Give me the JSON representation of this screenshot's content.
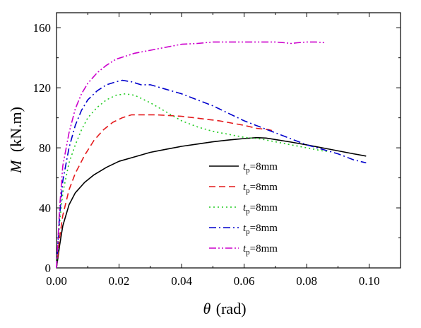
{
  "chart_data": {
    "type": "line",
    "title": "",
    "xlabel": {
      "symbol": "θ",
      "unit": "(rad)"
    },
    "ylabel": {
      "symbol": "M",
      "unit": "(kN.m)"
    },
    "xlim": [
      0.0,
      0.11
    ],
    "ylim": [
      0,
      170
    ],
    "xticks": [
      0.0,
      0.02,
      0.04,
      0.06,
      0.08,
      0.1
    ],
    "xtick_labels": [
      "0.00",
      "0.02",
      "0.04",
      "0.06",
      "0.08",
      "0.10"
    ],
    "yticks": [
      0,
      40,
      80,
      120,
      160
    ],
    "ytick_labels": [
      "0",
      "40",
      "80",
      "120",
      "160"
    ],
    "grid": false,
    "legend": {
      "placement": "lower-center",
      "entries": [
        {
          "symbol": "t",
          "subscript": "p",
          "text": "=8mm"
        },
        {
          "symbol": "t",
          "subscript": "p",
          "text": "=8mm"
        },
        {
          "symbol": "t",
          "subscript": "p",
          "text": "=8mm"
        },
        {
          "symbol": "t",
          "subscript": "p",
          "text": "=8mm"
        },
        {
          "symbol": "t",
          "subscript": "p",
          "text": "=8mm"
        }
      ]
    },
    "series": [
      {
        "color": "#000000",
        "dash": "solid",
        "points": [
          [
            0,
            0
          ],
          [
            0.001,
            15
          ],
          [
            0.002,
            28
          ],
          [
            0.004,
            42
          ],
          [
            0.006,
            50
          ],
          [
            0.009,
            57
          ],
          [
            0.012,
            62
          ],
          [
            0.016,
            67
          ],
          [
            0.02,
            71
          ],
          [
            0.025,
            74
          ],
          [
            0.03,
            77
          ],
          [
            0.035,
            79
          ],
          [
            0.04,
            81
          ],
          [
            0.045,
            82.5
          ],
          [
            0.05,
            84
          ],
          [
            0.055,
            85.2
          ],
          [
            0.06,
            86.2
          ],
          [
            0.064,
            86.8
          ],
          [
            0.067,
            86.5
          ],
          [
            0.07,
            85.5
          ],
          [
            0.075,
            83.8
          ],
          [
            0.08,
            82
          ],
          [
            0.085,
            80
          ],
          [
            0.09,
            78
          ],
          [
            0.095,
            76
          ],
          [
            0.099,
            74.5
          ]
        ]
      },
      {
        "color": "#e41a1c",
        "dash": "dashed",
        "points": [
          [
            0,
            0
          ],
          [
            0.001,
            20
          ],
          [
            0.002,
            35
          ],
          [
            0.004,
            52
          ],
          [
            0.006,
            63
          ],
          [
            0.009,
            75
          ],
          [
            0.012,
            85
          ],
          [
            0.015,
            92
          ],
          [
            0.018,
            97
          ],
          [
            0.021,
            100
          ],
          [
            0.024,
            102
          ],
          [
            0.028,
            102
          ],
          [
            0.032,
            102
          ],
          [
            0.036,
            101.5
          ],
          [
            0.04,
            101
          ],
          [
            0.044,
            100
          ],
          [
            0.048,
            99
          ],
          [
            0.052,
            98
          ],
          [
            0.056,
            96.5
          ],
          [
            0.06,
            95
          ],
          [
            0.064,
            93
          ],
          [
            0.068,
            92
          ],
          [
            0.07,
            91
          ]
        ]
      },
      {
        "color": "#22cc22",
        "dash": "dotted",
        "points": [
          [
            0,
            0
          ],
          [
            0.001,
            30
          ],
          [
            0.002,
            50
          ],
          [
            0.004,
            70
          ],
          [
            0.006,
            82
          ],
          [
            0.008,
            92
          ],
          [
            0.01,
            100
          ],
          [
            0.013,
            107
          ],
          [
            0.016,
            112
          ],
          [
            0.019,
            115
          ],
          [
            0.022,
            116
          ],
          [
            0.025,
            115
          ],
          [
            0.03,
            110
          ],
          [
            0.035,
            104
          ],
          [
            0.04,
            98
          ],
          [
            0.045,
            94
          ],
          [
            0.05,
            91
          ],
          [
            0.055,
            89
          ],
          [
            0.06,
            87
          ],
          [
            0.065,
            86
          ],
          [
            0.07,
            84
          ],
          [
            0.075,
            82
          ],
          [
            0.08,
            80
          ],
          [
            0.085,
            78
          ],
          [
            0.087,
            77.5
          ]
        ]
      },
      {
        "color": "#0000cc",
        "dash": "dashdot",
        "points": [
          [
            0,
            0
          ],
          [
            0.001,
            35
          ],
          [
            0.002,
            58
          ],
          [
            0.004,
            80
          ],
          [
            0.006,
            95
          ],
          [
            0.008,
            105
          ],
          [
            0.01,
            112
          ],
          [
            0.013,
            118
          ],
          [
            0.016,
            122
          ],
          [
            0.019,
            124
          ],
          [
            0.021,
            125
          ],
          [
            0.024,
            124
          ],
          [
            0.027,
            122
          ],
          [
            0.03,
            122
          ],
          [
            0.035,
            119
          ],
          [
            0.04,
            116
          ],
          [
            0.045,
            112
          ],
          [
            0.05,
            108
          ],
          [
            0.055,
            103
          ],
          [
            0.06,
            98
          ],
          [
            0.065,
            94
          ],
          [
            0.07,
            90
          ],
          [
            0.075,
            86
          ],
          [
            0.08,
            82
          ],
          [
            0.085,
            79
          ],
          [
            0.09,
            76
          ],
          [
            0.095,
            72
          ],
          [
            0.099,
            70
          ]
        ]
      },
      {
        "color": "#cc00cc",
        "dash": "dashdotdot",
        "points": [
          [
            0,
            0
          ],
          [
            0.001,
            40
          ],
          [
            0.002,
            68
          ],
          [
            0.004,
            90
          ],
          [
            0.006,
            106
          ],
          [
            0.008,
            116
          ],
          [
            0.01,
            123
          ],
          [
            0.013,
            130
          ],
          [
            0.016,
            135
          ],
          [
            0.019,
            139
          ],
          [
            0.022,
            141
          ],
          [
            0.025,
            143
          ],
          [
            0.03,
            145
          ],
          [
            0.035,
            147
          ],
          [
            0.04,
            149
          ],
          [
            0.045,
            149.5
          ],
          [
            0.05,
            150.5
          ],
          [
            0.055,
            150.5
          ],
          [
            0.06,
            150.5
          ],
          [
            0.065,
            150.5
          ],
          [
            0.07,
            150.5
          ],
          [
            0.073,
            150
          ],
          [
            0.075,
            149.5
          ],
          [
            0.077,
            150
          ],
          [
            0.08,
            150.5
          ],
          [
            0.083,
            150.5
          ],
          [
            0.086,
            150
          ]
        ]
      }
    ]
  }
}
